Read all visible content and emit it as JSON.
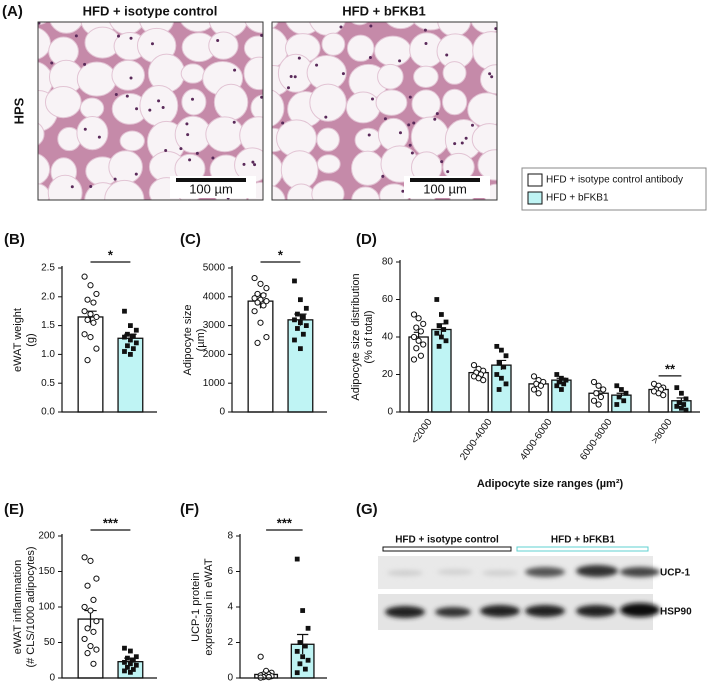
{
  "panel_labels": [
    "(A)",
    "(B)",
    "(C)",
    "(D)",
    "(E)",
    "(F)",
    "(G)"
  ],
  "histology": {
    "row_label": "HPS",
    "titles": [
      "HFD + isotype control",
      "HFD + bFKB1"
    ],
    "scale_bar": "100 µm"
  },
  "legend": [
    {
      "name": "HFD + isotype control antibody",
      "color": "#ffffff"
    },
    {
      "name": "HFD + bFKB1",
      "color": "#bff4f4"
    }
  ],
  "chart_data": [
    {
      "type": "bar",
      "ylabel": [
        "eWAT weight",
        "(g)"
      ],
      "ylim": [
        0,
        2.5
      ],
      "yticks": [
        {
          "value": 0,
          "label": "0.0"
        },
        0.5,
        {
          "value": 1,
          "label": "1.0"
        },
        1.5,
        {
          "value": 2,
          "label": "2.0"
        },
        2.5
      ],
      "significance": "*",
      "series": [
        {
          "values": [
            1.65
          ],
          "errors": [
            0.1
          ],
          "points": [
            [
              2.35,
              2.2,
              2.05,
              1.95,
              1.9,
              1.75,
              1.7,
              1.65,
              1.6,
              1.55,
              1.35,
              1.3,
              1.1,
              0.9
            ]
          ]
        },
        {
          "values": [
            1.28
          ],
          "errors": [
            0.07
          ],
          "points": [
            [
              1.75,
              1.5,
              1.42,
              1.35,
              1.32,
              1.3,
              1.25,
              1.2,
              1.15,
              1.1,
              1.05,
              1.0
            ]
          ]
        }
      ]
    },
    {
      "type": "bar",
      "ylabel": [
        "Adipocyte size",
        "(µm)"
      ],
      "ylim": [
        0,
        5000
      ],
      "yticks": [
        0,
        1000,
        2000,
        3000,
        4000,
        5000
      ],
      "significance": "*",
      "series": [
        {
          "values": [
            3850
          ],
          "errors": [
            250
          ],
          "points": [
            [
              4650,
              4450,
              4300,
              4100,
              4050,
              3950,
              3900,
              3850,
              3800,
              3700,
              3500,
              3100,
              2600,
              2400
            ]
          ]
        },
        {
          "values": [
            3200
          ],
          "errors": [
            200
          ],
          "points": [
            [
              4550,
              3900,
              3600,
              3400,
              3300,
              3200,
              3100,
              3000,
              2900,
              2700,
              2500,
              2200
            ]
          ]
        }
      ]
    },
    {
      "type": "bar",
      "ylabel": [
        "Adipocyte size distribution",
        "(% of total)"
      ],
      "xlabel": "Adipocyte size ranges (µm²)",
      "categories": [
        "<2000",
        "2000-4000",
        "4000-6000",
        "6000-8000",
        ">8000"
      ],
      "ylim": [
        0,
        80
      ],
      "yticks": [
        0,
        20,
        40,
        60,
        80
      ],
      "significance": "**",
      "series": [
        {
          "values": [
            40,
            21,
            15,
            10,
            12
          ],
          "errors": [
            2.5,
            1.2,
            1,
            1.2,
            0.8
          ],
          "points": [
            [
              52,
              50,
              47,
              45,
              43,
              40,
              38,
              36,
              34,
              30,
              28
            ],
            [
              25,
              23,
              22,
              21,
              20,
              19,
              18,
              17
            ],
            [
              19,
              17,
              16,
              15,
              14,
              12,
              10
            ],
            [
              16,
              14,
              12,
              10,
              8,
              6,
              4
            ],
            [
              15,
              14,
              13,
              12,
              12,
              11,
              10,
              9
            ]
          ]
        },
        {
          "values": [
            44,
            25,
            17,
            9,
            6
          ],
          "errors": [
            3,
            2.5,
            1,
            1,
            1.5
          ],
          "points": [
            [
              60,
              52,
              48,
              46,
              44,
              42,
              40,
              38,
              35
            ],
            [
              35,
              33,
              30,
              26,
              24,
              20,
              18,
              15,
              12
            ],
            [
              20,
              18,
              17,
              16,
              15,
              14,
              12
            ],
            [
              14,
              12,
              10,
              8,
              6,
              4
            ],
            [
              13,
              10,
              7,
              5,
              4,
              3,
              2,
              1
            ]
          ]
        }
      ]
    },
    {
      "type": "bar",
      "ylabel": [
        "eWAT inflammation",
        "(# CLS/1000 adipocytes)"
      ],
      "ylim": [
        0,
        200
      ],
      "yticks": [
        0,
        50,
        100,
        150,
        200
      ],
      "significance": "***",
      "series": [
        {
          "values": [
            83
          ],
          "errors": [
            12
          ],
          "points": [
            [
              170,
              165,
              140,
              130,
              110,
              100,
              95,
              80,
              70,
              65,
              55,
              45,
              40,
              35,
              20
            ]
          ]
        },
        {
          "values": [
            23
          ],
          "errors": [
            5
          ],
          "points": [
            [
              42,
              38,
              30,
              28,
              25,
              22,
              20,
              18,
              15,
              12,
              10,
              8
            ]
          ]
        }
      ]
    },
    {
      "type": "bar",
      "ylabel": [
        "UCP-1 protein",
        "expression in eWAT"
      ],
      "ylim": [
        0,
        8
      ],
      "yticks": [
        0,
        2,
        4,
        6,
        8
      ],
      "significance": "***",
      "series": [
        {
          "values": [
            0.2
          ],
          "errors": [
            0.1
          ],
          "points": [
            [
              1.2,
              0.4,
              0.3,
              0.2,
              0.2,
              0.15,
              0.1,
              0.1,
              0.05,
              0.05,
              0.02
            ]
          ]
        },
        {
          "values": [
            1.9
          ],
          "errors": [
            0.55
          ],
          "points": [
            [
              6.7,
              3.8,
              2.8,
              2.0,
              1.8,
              1.5,
              1.2,
              1.0,
              0.8,
              0.5,
              0.3
            ]
          ]
        }
      ]
    }
  ],
  "blot": {
    "groups": [
      "HFD + isotype control",
      "HFD + bFKB1"
    ],
    "proteins": [
      "UCP-1",
      "HSP90"
    ]
  }
}
